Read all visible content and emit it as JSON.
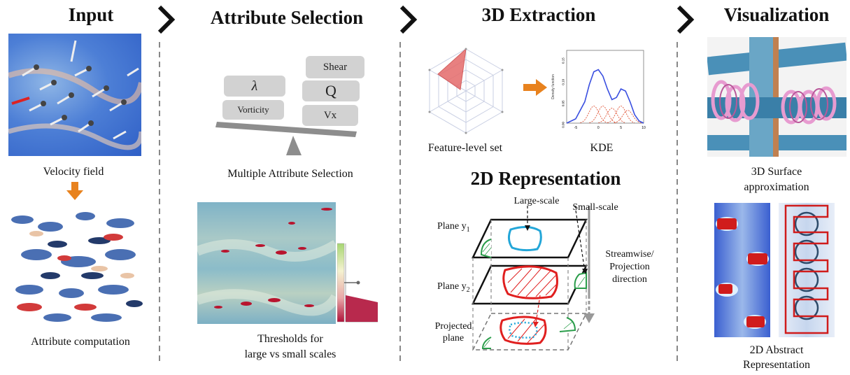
{
  "sections": {
    "input": "Input",
    "attribute_selection": "Attribute Selection",
    "extraction_3d": "3D Extraction",
    "visualization": "Visualization",
    "representation_2d": "2D Representation"
  },
  "input_panel": {
    "velocity_caption": "Velocity field",
    "attribute_caption": "Attribute computation"
  },
  "selection_panel": {
    "attributes": {
      "lambda": "λ",
      "vorticity": "Vorticity",
      "shear": "Shear",
      "q": "Q",
      "vx": "Vx"
    },
    "multi_caption": "Multiple Attribute Selection",
    "threshold_caption_line1": "Thresholds for",
    "threshold_caption_line2": "large vs small scales"
  },
  "extraction_panel": {
    "radar_caption": "Feature-level set",
    "kde_caption": "KDE",
    "kde_ylabel": "Density function",
    "kde_yticks": [
      "0.00",
      "0.05",
      "0.10",
      "0.15"
    ],
    "kde_xticks": [
      "-5",
      "0",
      "5",
      "10"
    ]
  },
  "representation_panel": {
    "large_scale": "Large-scale",
    "small_scale": "Small-scale",
    "plane_y1": "Plane y",
    "plane_y1_sub": "1",
    "plane_y2": "Plane y",
    "plane_y2_sub": "2",
    "projected_line1": "Projected",
    "projected_line2": "plane",
    "direction_line1": "Streamwise/",
    "direction_line2": "Projection",
    "direction_line3": "direction"
  },
  "visualization_panel": {
    "surface_line1": "3D Surface",
    "surface_line2": "approximation",
    "abstract_line1": "2D Abstract",
    "abstract_line2": "Representation"
  },
  "chart_data": {
    "type": "line",
    "title": "",
    "xlabel": "",
    "ylabel": "Density function",
    "xlim": [
      -7,
      10
    ],
    "ylim": [
      0,
      0.17
    ],
    "series": [
      {
        "x": [
          -7,
          -5,
          -3,
          -2,
          -1,
          0,
          1,
          2,
          3,
          4,
          5,
          6,
          7,
          8,
          9,
          10
        ],
        "y": [
          0.0,
          0.01,
          0.05,
          0.09,
          0.12,
          0.125,
          0.11,
          0.08,
          0.055,
          0.06,
          0.08,
          0.075,
          0.05,
          0.02,
          0.005,
          0.0
        ]
      }
    ],
    "components": [
      {
        "center": -1,
        "peak": 0.04
      },
      {
        "center": 1,
        "peak": 0.04
      },
      {
        "center": 3,
        "peak": 0.035
      },
      {
        "center": 5,
        "peak": 0.04
      },
      {
        "center": 6.5,
        "peak": 0.03
      }
    ]
  }
}
